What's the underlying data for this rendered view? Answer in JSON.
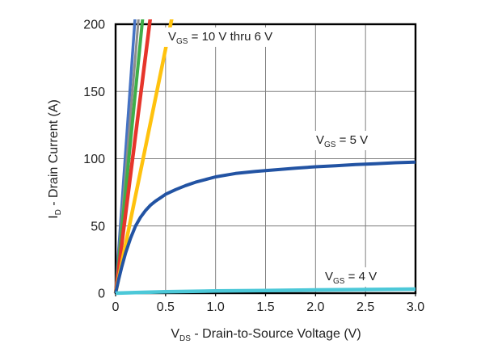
{
  "chart_data": {
    "type": "line",
    "title": "",
    "xlabel": {
      "pre": "V",
      "sub": "DS",
      "post": " - Drain-to-Source Voltage (V)"
    },
    "ylabel": {
      "pre": "I",
      "sub": "D",
      "post": " - Drain Current (A)"
    },
    "xlim": [
      0,
      3
    ],
    "ylim": [
      0,
      200
    ],
    "xticks": [
      0,
      0.5,
      1,
      1.5,
      2,
      2.5,
      3
    ],
    "xtick_labels": [
      "0",
      "0.5",
      "1.0",
      "1.5",
      "2.0",
      "2.5",
      "3.0"
    ],
    "yticks": [
      0,
      50,
      100,
      150,
      200
    ],
    "ytick_labels": [
      "0",
      "50",
      "100",
      "150",
      "200"
    ],
    "grid": true,
    "legend_position": "none",
    "axis_color": "#000000",
    "grid_color": "#808080",
    "text_color": "#1f1f1f",
    "series": [
      {
        "name": "VGS = 10 V",
        "color": "#4472c4",
        "width": 3.5,
        "points": [
          [
            0,
            0
          ],
          [
            0.2,
            210
          ]
        ]
      },
      {
        "name": "VGS = 9 V",
        "color": "#8c8c8c",
        "width": 3,
        "points": [
          [
            0,
            0
          ],
          [
            0.236,
            210
          ]
        ]
      },
      {
        "name": "VGS = 8 V",
        "color": "#3fae49",
        "width": 4,
        "points": [
          [
            0,
            0
          ],
          [
            0.278,
            210
          ]
        ]
      },
      {
        "name": "VGS = 7 V",
        "color": "#e6352b",
        "width": 4.5,
        "points": [
          [
            0,
            0
          ],
          [
            0.357,
            210
          ]
        ]
      },
      {
        "name": "VGS = 6 V",
        "color": "#ffc20e",
        "width": 4.5,
        "points": [
          [
            0,
            0
          ],
          [
            0.578,
            210
          ]
        ]
      },
      {
        "name": "VGS = 5 V",
        "color": "#2253a3",
        "width": 4,
        "points": [
          [
            0,
            0
          ],
          [
            0.03,
            10
          ],
          [
            0.06,
            19
          ],
          [
            0.1,
            30
          ],
          [
            0.15,
            41
          ],
          [
            0.2,
            50
          ],
          [
            0.25,
            56.5
          ],
          [
            0.3,
            61.5
          ],
          [
            0.35,
            65.5
          ],
          [
            0.4,
            68.5
          ],
          [
            0.45,
            71
          ],
          [
            0.5,
            73.5
          ],
          [
            0.6,
            77
          ],
          [
            0.7,
            80
          ],
          [
            0.8,
            82.5
          ],
          [
            0.9,
            84.5
          ],
          [
            1.0,
            86.5
          ],
          [
            1.2,
            89
          ],
          [
            1.4,
            90.5
          ],
          [
            1.6,
            91.8
          ],
          [
            1.8,
            93
          ],
          [
            2.0,
            94
          ],
          [
            2.2,
            94.8
          ],
          [
            2.4,
            95.6
          ],
          [
            2.6,
            96.3
          ],
          [
            2.8,
            97
          ],
          [
            3.0,
            97.5
          ]
        ]
      },
      {
        "name": "VGS = 4 V",
        "color": "#4cc8d8",
        "width": 4.5,
        "points": [
          [
            0,
            0
          ],
          [
            0.2,
            0.5
          ],
          [
            0.5,
            1.0
          ],
          [
            1.0,
            1.6
          ],
          [
            1.5,
            2.0
          ],
          [
            2.0,
            2.4
          ],
          [
            2.5,
            2.7
          ],
          [
            3.0,
            3.0
          ]
        ]
      }
    ],
    "annotations": [
      {
        "pre": "V",
        "sub": "GS",
        "post": " = 10 V thru 6 V"
      },
      {
        "pre": "V",
        "sub": "GS",
        "post": " = 5 V"
      },
      {
        "pre": "V",
        "sub": "GS",
        "post": " = 4 V"
      }
    ]
  }
}
